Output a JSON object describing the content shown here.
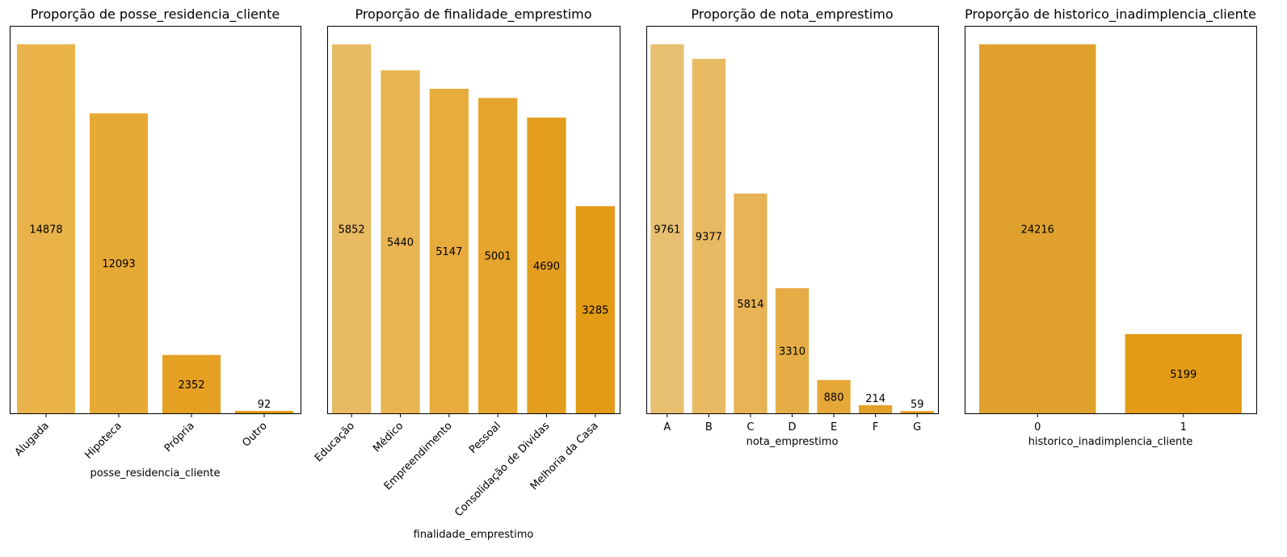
{
  "chart_data": [
    {
      "type": "bar",
      "title": "Proporção de posse_residencia_cliente",
      "xlabel": "posse_residencia_cliente",
      "ylabel": "",
      "categories": [
        "Alugada",
        "Hipoteca",
        "Própria",
        "Outro"
      ],
      "values": [
        14878,
        12093,
        2352,
        92
      ],
      "ylim": [
        0,
        15622
      ],
      "colors": [
        "#E9B34A",
        "#E7A936",
        "#E59F21",
        "#E3950D"
      ],
      "tick_rotation": 45,
      "yaxis_ticks": false
    },
    {
      "type": "bar",
      "title": "Proporção de finalidade_emprestimo",
      "xlabel": "finalidade_emprestimo",
      "ylabel": "",
      "categories": [
        "Educação",
        "Médico",
        "Empreendimento",
        "Pessoal",
        "Consolidação de Dividas",
        "Melhoria da Casa"
      ],
      "values": [
        5852,
        5440,
        5147,
        5001,
        4690,
        3285
      ],
      "ylim": [
        0,
        6145
      ],
      "colors": [
        "#E8BA62",
        "#E8B552",
        "#E7AC3D",
        "#E5A42C",
        "#E39E1F",
        "#E39A14"
      ],
      "tick_rotation": 45,
      "yaxis_ticks": false
    },
    {
      "type": "bar",
      "title": "Proporção de nota_emprestimo",
      "xlabel": "nota_emprestimo",
      "ylabel": "",
      "categories": [
        "A",
        "B",
        "C",
        "D",
        "E",
        "F",
        "G"
      ],
      "values": [
        9761,
        9377,
        5814,
        3310,
        880,
        214,
        59
      ],
      "ylim": [
        0,
        10249
      ],
      "colors": [
        "#E8BF71",
        "#E8BA63",
        "#E7B355",
        "#E6AD46",
        "#E5A737",
        "#E4A129",
        "#E39A19"
      ],
      "tick_rotation": 0,
      "yaxis_ticks": false
    },
    {
      "type": "bar",
      "title": "Proporção de historico_inadimplencia_cliente",
      "xlabel": "historico_inadimplencia_cliente",
      "ylabel": "",
      "categories": [
        "0",
        "1"
      ],
      "values": [
        24216,
        5199
      ],
      "ylim": [
        0,
        25427
      ],
      "colors": [
        "#E0A22C",
        "#E39B18"
      ],
      "tick_rotation": 0,
      "yaxis_ticks": false
    }
  ]
}
